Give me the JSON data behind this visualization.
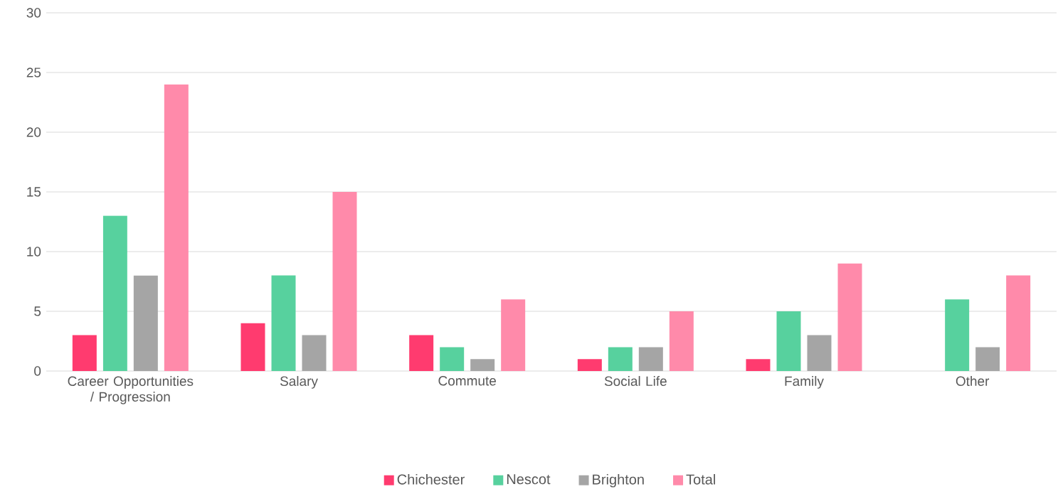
{
  "chart_data": {
    "type": "bar",
    "categories": [
      "Career Opportunities / Progression",
      "Salary",
      "Commute",
      "Social Life",
      "Family",
      "Other"
    ],
    "series": [
      {
        "name": "Chichester",
        "color": "#ff3b6f",
        "values": [
          3,
          4,
          3,
          1,
          1,
          0
        ]
      },
      {
        "name": "Nescot",
        "color": "#57d19e",
        "values": [
          13,
          8,
          2,
          2,
          5,
          6
        ]
      },
      {
        "name": "Brighton",
        "color": "#a5a5a5",
        "values": [
          8,
          3,
          1,
          2,
          3,
          2
        ]
      },
      {
        "name": "Total",
        "color": "#ff8aaa",
        "values": [
          24,
          15,
          6,
          5,
          9,
          8
        ]
      }
    ],
    "ylim": [
      0,
      30
    ],
    "yticks": [
      0,
      5,
      10,
      15,
      20,
      25,
      30
    ],
    "grid": "y",
    "legend": "bottom"
  }
}
